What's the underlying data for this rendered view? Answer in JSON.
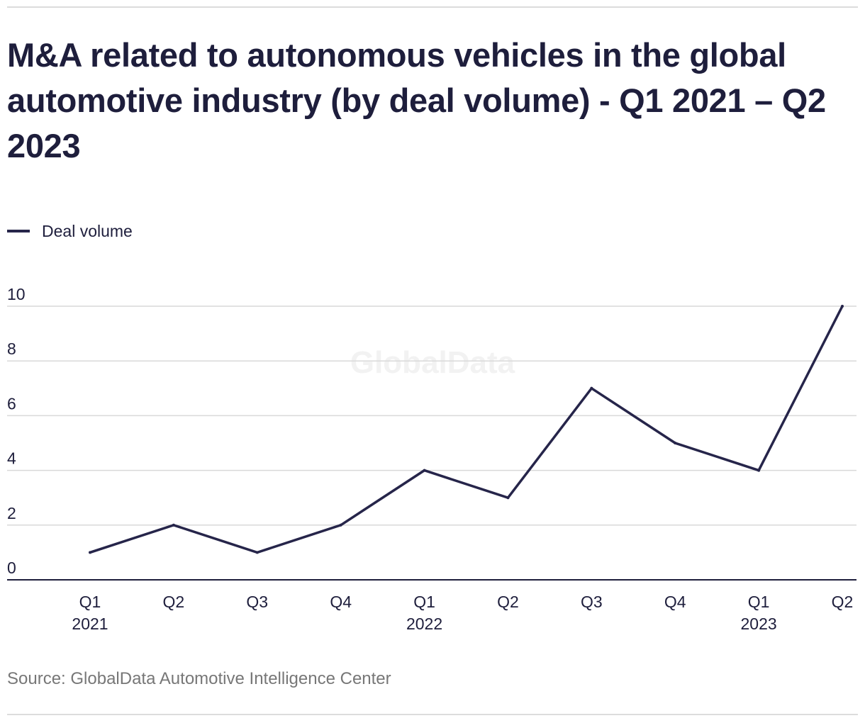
{
  "header": {
    "title": "M&A related to autonomous vehicles in the global automotive industry (by deal volume) - Q1 2021 – Q2 2023"
  },
  "legend": {
    "label": "Deal volume"
  },
  "watermark": "GlobalData",
  "footer": {
    "source": "Source: GlobalData Automotive Intelligence Center"
  },
  "colors": {
    "line": "#26254a",
    "text": "#1e1e3c",
    "grid": "#d9d9d9",
    "axis": "#1e1e3c",
    "source": "#777777"
  },
  "chart_data": {
    "type": "line",
    "title": "M&A related to autonomous vehicles in the global automotive industry (by deal volume) - Q1 2021 – Q2 2023",
    "xlabel": "",
    "ylabel": "",
    "categories": [
      {
        "quarter": "Q1",
        "year": "2021"
      },
      {
        "quarter": "Q2",
        "year": ""
      },
      {
        "quarter": "Q3",
        "year": ""
      },
      {
        "quarter": "Q4",
        "year": ""
      },
      {
        "quarter": "Q1",
        "year": "2022"
      },
      {
        "quarter": "Q2",
        "year": ""
      },
      {
        "quarter": "Q3",
        "year": ""
      },
      {
        "quarter": "Q4",
        "year": ""
      },
      {
        "quarter": "Q1",
        "year": "2023"
      },
      {
        "quarter": "Q2",
        "year": ""
      }
    ],
    "series": [
      {
        "name": "Deal volume",
        "values": [
          1,
          2,
          1,
          2,
          4,
          3,
          7,
          5,
          4,
          10
        ]
      }
    ],
    "ylim": [
      0,
      10
    ],
    "yticks": [
      0,
      2,
      4,
      6,
      8,
      10
    ],
    "grid": true,
    "legend": "top-left"
  }
}
